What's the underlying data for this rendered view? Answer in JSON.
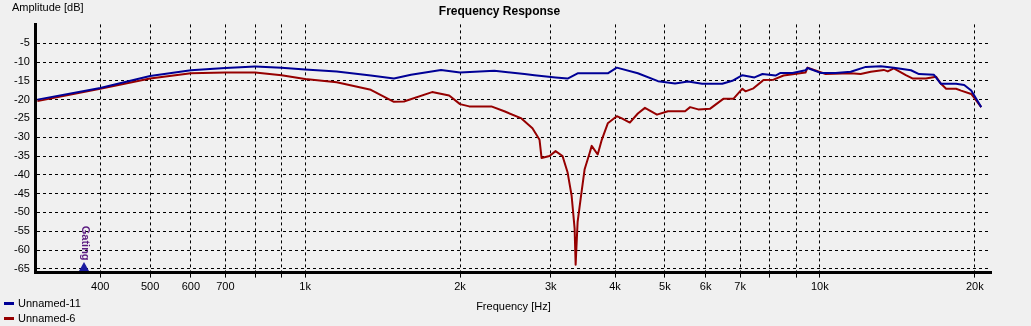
{
  "chart_data": {
    "type": "line",
    "title": "Frequency Response",
    "xlabel": "Frequency [Hz]",
    "ylabel": "Amplitude [dB]",
    "log": "x",
    "grid": true,
    "legend": "bottom left",
    "marker": "none",
    "line_style": "solid",
    "xlim": [
      300,
      21500
    ],
    "ylim": [
      -66,
      0
    ],
    "xticks": [
      {
        "value": 400,
        "label": "400"
      },
      {
        "value": 500,
        "label": "500"
      },
      {
        "value": 600,
        "label": "600"
      },
      {
        "value": 700,
        "label": "700"
      },
      {
        "value": 800,
        "label": null
      },
      {
        "value": 900,
        "label": null
      },
      {
        "value": 1000,
        "label": "1k"
      },
      {
        "value": 2000,
        "label": "2k"
      },
      {
        "value": 3000,
        "label": "3k"
      },
      {
        "value": 4000,
        "label": "4k"
      },
      {
        "value": 5000,
        "label": "5k"
      },
      {
        "value": 6000,
        "label": "6k"
      },
      {
        "value": 7000,
        "label": "7k"
      },
      {
        "value": 8000,
        "label": null
      },
      {
        "value": 9000,
        "label": null
      },
      {
        "value": 10000,
        "label": "10k"
      },
      {
        "value": 20000,
        "label": "20k"
      }
    ],
    "yticks": [
      -5,
      -10,
      -15,
      -20,
      -25,
      -30,
      -35,
      -40,
      -45,
      -50,
      -55,
      -60,
      -65
    ],
    "annotations": [
      "Gating"
    ],
    "series": [
      {
        "name": "Unnamed-11",
        "color": "#000096",
        "x": [
          302,
          400,
          500,
          600,
          700,
          800,
          900,
          1000,
          1152,
          1342,
          1488,
          1606,
          1837,
          2000,
          2332,
          2668,
          2790,
          3066,
          3236,
          3384,
          3604,
          3873,
          4032,
          4430,
          4848,
          5232,
          5546,
          5908,
          6462,
          6761,
          7072,
          7465,
          7737,
          8201,
          8387,
          8850,
          9378,
          9463,
          10030,
          10730,
          11480,
          12280,
          13130,
          13920,
          15030,
          15580,
          16660,
          17190,
          18390,
          19070,
          19680,
          20580
        ],
        "values": [
          -20.0,
          -16.9,
          -13.7,
          -12.2,
          -11.6,
          -11.2,
          -11.5,
          -12.0,
          -12.5,
          -13.6,
          -14.4,
          -13.4,
          -12.1,
          -12.8,
          -12.3,
          -13.2,
          -13.5,
          -14.1,
          -14.4,
          -13.0,
          -13.0,
          -13.0,
          -11.5,
          -13.0,
          -15.1,
          -15.7,
          -15.2,
          -15.8,
          -15.8,
          -15.0,
          -13.5,
          -14.1,
          -13.2,
          -13.6,
          -12.9,
          -12.9,
          -12.2,
          -11.6,
          -12.9,
          -12.9,
          -12.6,
          -11.3,
          -11.1,
          -11.5,
          -12.2,
          -13.2,
          -13.4,
          -15.8,
          -15.8,
          -16.1,
          -17.6,
          -22.0
        ]
      },
      {
        "name": "Unnamed-6",
        "color": "#960000",
        "x": [
          302,
          400,
          500,
          600,
          700,
          800,
          900,
          1000,
          1152,
          1342,
          1488,
          1556,
          1765,
          1905,
          2000,
          2084,
          2300,
          2438,
          2632,
          2765,
          2854,
          2880,
          2985,
          3066,
          3163,
          3236,
          3294,
          3339,
          3354,
          3384,
          3430,
          3492,
          3571,
          3604,
          3702,
          3770,
          3873,
          4032,
          4124,
          4274,
          4430,
          4573,
          4826,
          5070,
          5472,
          5598,
          5803,
          6123,
          6492,
          6792,
          7072,
          7168,
          7431,
          7771,
          8128,
          8501,
          9378,
          9463,
          10260,
          11480,
          12000,
          12560,
          13310,
          13550,
          13920,
          14690,
          15160,
          16070,
          16810,
          17190,
          17590,
          18390,
          18810,
          19680,
          20580
        ],
        "values": [
          -20.4,
          -17.1,
          -14.4,
          -13.0,
          -12.8,
          -12.8,
          -13.5,
          -14.5,
          -15.4,
          -17.4,
          -20.6,
          -20.5,
          -18.0,
          -18.9,
          -21.2,
          -21.8,
          -21.8,
          -23.1,
          -25.0,
          -27.6,
          -30.7,
          -35.5,
          -35.0,
          -33.7,
          -35.0,
          -39.4,
          -45.5,
          -54.3,
          -63.9,
          -52.5,
          -46.4,
          -38.5,
          -34.2,
          -32.3,
          -34.6,
          -30.7,
          -26.3,
          -24.4,
          -25.0,
          -26.1,
          -23.7,
          -22.2,
          -24.0,
          -23.1,
          -23.1,
          -22.0,
          -22.6,
          -22.4,
          -19.8,
          -19.8,
          -17.1,
          -17.8,
          -17.0,
          -14.8,
          -14.7,
          -13.6,
          -12.8,
          -11.5,
          -13.2,
          -13.0,
          -13.2,
          -12.6,
          -12.1,
          -12.5,
          -11.7,
          -13.5,
          -14.4,
          -14.4,
          -13.9,
          -15.8,
          -17.1,
          -17.1,
          -17.6,
          -18.5,
          -22.0
        ]
      }
    ]
  }
}
